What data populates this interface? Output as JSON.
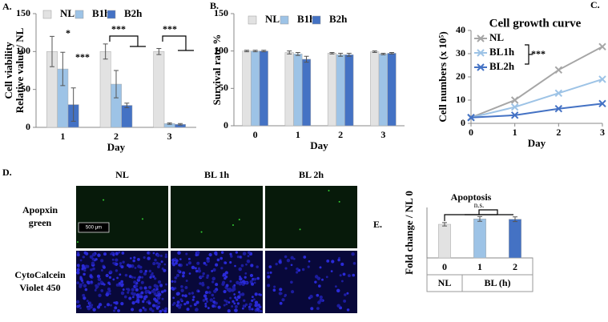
{
  "chart_data": [
    {
      "type": "bar",
      "panel_label": "A.",
      "y_label": [
        "Cell viability",
        "Relative value / NL"
      ],
      "x_label": "Day",
      "categories": [
        "1",
        "2",
        "3"
      ],
      "series": [
        {
          "name": "NL",
          "color": "#e2e2e2",
          "values": [
            100,
            100,
            100
          ],
          "errors": [
            20,
            10,
            4
          ]
        },
        {
          "name": "B1h",
          "color": "#9dc3e6",
          "values": [
            77,
            57,
            5
          ],
          "errors": [
            22,
            18,
            1
          ]
        },
        {
          "name": "B2h",
          "color": "#4472c4",
          "values": [
            30,
            29,
            4
          ],
          "errors": [
            22,
            3,
            1
          ]
        }
      ],
      "ylim": [
        0,
        150
      ],
      "yticks": [
        0,
        50,
        100,
        150
      ],
      "annotations": [
        "*",
        "***",
        "***",
        "***"
      ]
    },
    {
      "type": "bar",
      "panel_label": "B.",
      "y_label": [
        "Survival rate %"
      ],
      "x_label": "Day",
      "categories": [
        "0",
        "1",
        "2",
        "3"
      ],
      "series": [
        {
          "name": "NL",
          "color": "#e2e2e2",
          "values": [
            100,
            98,
            97,
            99
          ],
          "errors": [
            1,
            2,
            1,
            1
          ]
        },
        {
          "name": "B1h",
          "color": "#9dc3e6",
          "values": [
            100,
            96,
            95,
            96
          ],
          "errors": [
            1,
            2,
            2,
            1
          ]
        },
        {
          "name": "B2h",
          "color": "#4472c4",
          "values": [
            100,
            89,
            95,
            97
          ],
          "errors": [
            1,
            4,
            2,
            1
          ]
        }
      ],
      "ylim": [
        0,
        150
      ],
      "yticks": [
        0,
        50,
        100,
        150
      ]
    },
    {
      "type": "line",
      "panel_label": "C.",
      "title": "Cell growth curve",
      "y_label": [
        "Cell numbers (x 10⁵)"
      ],
      "x_label": "Day",
      "x": [
        0,
        1,
        2,
        3
      ],
      "series": [
        {
          "name": "NL",
          "color": "#a6a6a6",
          "values": [
            2.5,
            10,
            23,
            33
          ]
        },
        {
          "name": "BL1h",
          "color": "#9dc3e6",
          "values": [
            2.5,
            7,
            13,
            19
          ]
        },
        {
          "name": "BL2h",
          "color": "#4472c4",
          "values": [
            2.5,
            3.5,
            6.3,
            8.5
          ]
        }
      ],
      "xlim": [
        0,
        3
      ],
      "xticks": [
        0,
        1,
        2,
        3
      ],
      "ylim": [
        0,
        40
      ],
      "yticks": [
        0,
        10,
        20,
        30,
        40
      ],
      "annotations": [
        "***"
      ]
    },
    {
      "type": "bar",
      "panel_label": "E.",
      "title": "Apoptosis",
      "y_label": [
        "Fold change / NL 0"
      ],
      "categories": [
        "0",
        "1",
        "2"
      ],
      "series": [
        {
          "colors": [
            "#e2e2e2",
            "#9dc3e6",
            "#4472c4"
          ],
          "values": [
            1.0,
            1.16,
            1.15
          ],
          "errors": [
            0.05,
            0.07,
            0.07
          ]
        }
      ],
      "ylim": [
        0,
        1.5
      ],
      "group_labels": [
        "NL",
        "BL (h)"
      ],
      "annotations": [
        "n.s."
      ]
    }
  ],
  "micrographs": {
    "panel_label": "D.",
    "columns": [
      "NL",
      "BL 1h",
      "BL 2h"
    ],
    "rows": [
      [
        "Apopxin",
        "green"
      ],
      [
        "CytoCalcein",
        "Violet 450"
      ]
    ],
    "scale_bar": "500 μm"
  }
}
